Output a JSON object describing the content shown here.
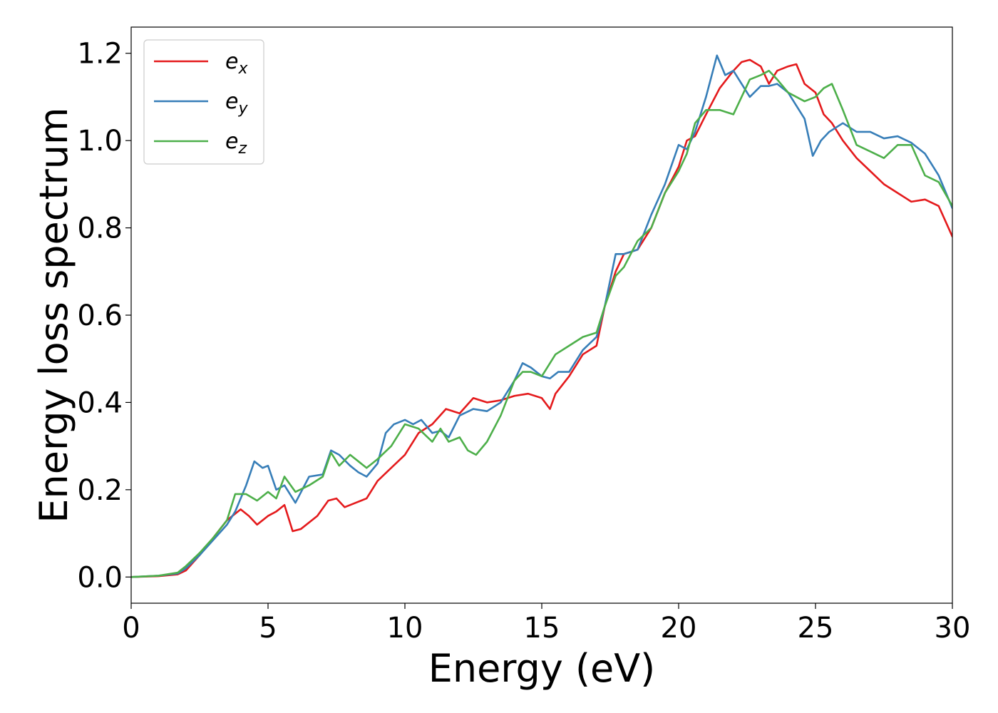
{
  "chart_data": {
    "type": "line",
    "xlabel": "Energy (eV)",
    "ylabel": "Energy loss spectrum",
    "xlim": [
      0,
      30
    ],
    "ylim": [
      -0.06,
      1.26
    ],
    "xticks": [
      0,
      5,
      10,
      15,
      20,
      25,
      30
    ],
    "xtick_labels": [
      "0",
      "5",
      "10",
      "15",
      "20",
      "25",
      "30"
    ],
    "yticks": [
      0.0,
      0.2,
      0.4,
      0.6,
      0.8,
      1.0,
      1.2
    ],
    "ytick_labels": [
      "0.0",
      "0.2",
      "0.4",
      "0.6",
      "0.8",
      "1.0",
      "1.2"
    ],
    "grid": false,
    "legend_position": "top-left",
    "series": [
      {
        "name": "e_x",
        "legend_base": "e",
        "legend_sub": "x",
        "color": "#e41a1c",
        "x": [
          0,
          1,
          1.7,
          2,
          2.5,
          3,
          3.5,
          4,
          4.3,
          4.6,
          5,
          5.3,
          5.6,
          5.9,
          6.2,
          6.8,
          7.2,
          7.5,
          7.8,
          8.2,
          8.6,
          9,
          9.5,
          10,
          10.5,
          11,
          11.5,
          12,
          12.5,
          13,
          13.5,
          14,
          14.5,
          15,
          15.3,
          15.5,
          16,
          16.5,
          17,
          17.3,
          17.7,
          18,
          18.5,
          19,
          19.5,
          20,
          20.3,
          20.6,
          21,
          21.5,
          22,
          22.3,
          22.6,
          23,
          23.3,
          23.6,
          24,
          24.3,
          24.6,
          25,
          25.3,
          25.6,
          26,
          26.5,
          27,
          27.5,
          28,
          28.5,
          29,
          29.5,
          30
        ],
        "y": [
          0.0,
          0.002,
          0.006,
          0.015,
          0.05,
          0.09,
          0.13,
          0.155,
          0.14,
          0.12,
          0.14,
          0.15,
          0.165,
          0.105,
          0.11,
          0.14,
          0.175,
          0.18,
          0.16,
          0.17,
          0.18,
          0.22,
          0.25,
          0.28,
          0.33,
          0.35,
          0.385,
          0.375,
          0.41,
          0.4,
          0.405,
          0.415,
          0.42,
          0.41,
          0.385,
          0.42,
          0.46,
          0.51,
          0.53,
          0.62,
          0.7,
          0.74,
          0.75,
          0.8,
          0.88,
          0.94,
          1.0,
          1.01,
          1.06,
          1.12,
          1.16,
          1.18,
          1.185,
          1.17,
          1.13,
          1.16,
          1.17,
          1.175,
          1.13,
          1.11,
          1.06,
          1.04,
          1.0,
          0.96,
          0.93,
          0.9,
          0.88,
          0.86,
          0.865,
          0.85,
          0.78
        ]
      },
      {
        "name": "e_y",
        "legend_base": "e",
        "legend_sub": "y",
        "color": "#377eb8",
        "x": [
          0,
          1,
          1.7,
          2,
          2.5,
          3,
          3.5,
          3.8,
          4.2,
          4.5,
          4.8,
          5,
          5.3,
          5.6,
          6,
          6.5,
          7,
          7.3,
          7.6,
          8,
          8.3,
          8.6,
          9,
          9.3,
          9.6,
          10,
          10.3,
          10.6,
          11,
          11.3,
          11.6,
          12,
          12.5,
          13,
          13.5,
          14,
          14.3,
          14.6,
          15,
          15.3,
          15.6,
          16,
          16.5,
          17,
          17.3,
          17.7,
          18,
          18.5,
          19,
          19.5,
          20,
          20.3,
          20.6,
          21,
          21.4,
          21.7,
          22,
          22.3,
          22.6,
          23,
          23.3,
          23.6,
          24,
          24.3,
          24.6,
          24.9,
          25.2,
          25.5,
          26,
          26.5,
          27,
          27.5,
          28,
          28.5,
          29,
          29.5,
          30
        ],
        "y": [
          0.0,
          0.003,
          0.008,
          0.02,
          0.05,
          0.085,
          0.12,
          0.15,
          0.21,
          0.265,
          0.25,
          0.255,
          0.2,
          0.21,
          0.17,
          0.23,
          0.235,
          0.29,
          0.28,
          0.255,
          0.24,
          0.23,
          0.26,
          0.33,
          0.35,
          0.36,
          0.35,
          0.36,
          0.33,
          0.335,
          0.32,
          0.37,
          0.385,
          0.38,
          0.4,
          0.45,
          0.49,
          0.48,
          0.46,
          0.455,
          0.47,
          0.47,
          0.52,
          0.55,
          0.62,
          0.74,
          0.74,
          0.75,
          0.83,
          0.9,
          0.99,
          0.98,
          1.02,
          1.1,
          1.195,
          1.15,
          1.16,
          1.13,
          1.1,
          1.125,
          1.125,
          1.13,
          1.11,
          1.08,
          1.05,
          0.965,
          1.0,
          1.02,
          1.04,
          1.02,
          1.02,
          1.005,
          1.01,
          0.995,
          0.97,
          0.92,
          0.845
        ]
      },
      {
        "name": "e_z",
        "legend_base": "e",
        "legend_sub": "z",
        "color": "#4daf4a",
        "x": [
          0,
          1,
          1.7,
          2,
          2.5,
          3,
          3.5,
          3.8,
          4.2,
          4.6,
          5,
          5.3,
          5.6,
          6,
          6.5,
          7,
          7.3,
          7.6,
          8,
          8.3,
          8.6,
          9,
          9.5,
          10,
          10.5,
          11,
          11.3,
          11.6,
          12,
          12.3,
          12.6,
          13,
          13.5,
          14,
          14.3,
          14.6,
          15,
          15.5,
          16,
          16.5,
          17,
          17.3,
          17.7,
          18,
          18.5,
          19,
          19.5,
          20,
          20.3,
          20.6,
          21,
          21.5,
          22,
          22.3,
          22.6,
          23,
          23.3,
          23.6,
          24,
          24.3,
          24.6,
          25,
          25.3,
          25.6,
          26,
          26.5,
          27,
          27.5,
          28,
          28.5,
          29,
          29.5,
          30
        ],
        "y": [
          0.0,
          0.003,
          0.01,
          0.025,
          0.055,
          0.09,
          0.13,
          0.19,
          0.19,
          0.175,
          0.195,
          0.18,
          0.23,
          0.195,
          0.21,
          0.23,
          0.285,
          0.255,
          0.28,
          0.265,
          0.25,
          0.27,
          0.3,
          0.35,
          0.34,
          0.31,
          0.34,
          0.31,
          0.32,
          0.29,
          0.28,
          0.31,
          0.37,
          0.45,
          0.47,
          0.47,
          0.46,
          0.51,
          0.53,
          0.55,
          0.56,
          0.62,
          0.69,
          0.71,
          0.77,
          0.8,
          0.88,
          0.93,
          0.97,
          1.04,
          1.07,
          1.07,
          1.06,
          1.1,
          1.14,
          1.15,
          1.16,
          1.14,
          1.11,
          1.1,
          1.09,
          1.1,
          1.12,
          1.13,
          1.07,
          0.99,
          0.975,
          0.96,
          0.99,
          0.99,
          0.92,
          0.905,
          0.85
        ]
      }
    ]
  }
}
